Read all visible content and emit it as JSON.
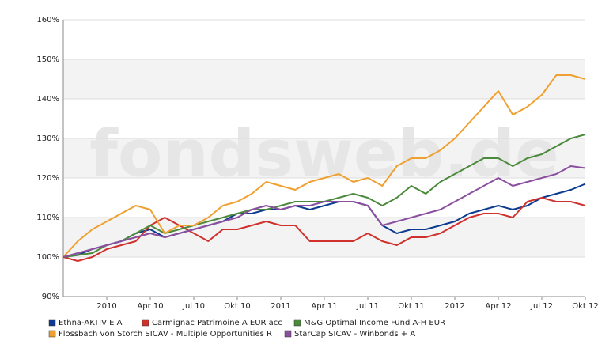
{
  "chart_data": {
    "type": "line",
    "watermark": "fondsweb.de",
    "x": [
      "2009-10",
      "2009-11",
      "2009-12",
      "2010-01",
      "2010-02",
      "2010-03",
      "2010-04",
      "2010-05",
      "2010-06",
      "2010-07",
      "2010-08",
      "2010-09",
      "2010-10",
      "2010-11",
      "2010-12",
      "2011-01",
      "2011-02",
      "2011-03",
      "2011-04",
      "2011-05",
      "2011-06",
      "2011-07",
      "2011-08",
      "2011-09",
      "2011-10",
      "2011-11",
      "2011-12",
      "2012-01",
      "2012-02",
      "2012-03",
      "2012-04",
      "2012-05",
      "2012-06",
      "2012-07",
      "2012-08",
      "2012-09",
      "2012-10"
    ],
    "xlim": [
      "2009-10",
      "2012-10"
    ],
    "xticks": [
      {
        "value": "2010-01",
        "label": "2010"
      },
      {
        "value": "2010-04",
        "label": "Apr 10"
      },
      {
        "value": "2010-07",
        "label": "Jul 10"
      },
      {
        "value": "2010-10",
        "label": "Okt 10"
      },
      {
        "value": "2011-01",
        "label": "2011"
      },
      {
        "value": "2011-04",
        "label": "Apr 11"
      },
      {
        "value": "2011-07",
        "label": "Jul 11"
      },
      {
        "value": "2011-10",
        "label": "Okt 11"
      },
      {
        "value": "2012-01",
        "label": "2012"
      },
      {
        "value": "2012-04",
        "label": "Apr 12"
      },
      {
        "value": "2012-07",
        "label": "Jul 12"
      },
      {
        "value": "2012-10",
        "label": "Okt 12"
      }
    ],
    "ylim": [
      90,
      160
    ],
    "yticks": [
      {
        "value": 90,
        "label": "90%"
      },
      {
        "value": 100,
        "label": "100%"
      },
      {
        "value": 110,
        "label": "110%"
      },
      {
        "value": 120,
        "label": "120%"
      },
      {
        "value": 130,
        "label": "130%"
      },
      {
        "value": 140,
        "label": "140%"
      },
      {
        "value": 150,
        "label": "150%"
      },
      {
        "value": 160,
        "label": "160%"
      }
    ],
    "grid": true,
    "series": [
      {
        "name": "Ethna-AKTIV E A",
        "color": "#0b3a8f",
        "values": [
          100,
          100.5,
          102,
          103,
          104,
          106,
          107,
          105,
          106,
          107,
          108,
          109,
          111,
          111,
          112,
          112,
          113,
          112,
          113,
          114,
          114,
          113,
          108,
          106,
          107,
          107,
          108,
          109,
          111,
          112,
          113,
          112,
          113,
          115,
          116,
          117,
          118.5
        ]
      },
      {
        "name": "Carmignac Patrimoine A EUR acc",
        "color": "#d0312d",
        "values": [
          100,
          99,
          100,
          102,
          103,
          104,
          108,
          110,
          108,
          106,
          104,
          107,
          107,
          108,
          109,
          108,
          108,
          104,
          104,
          104,
          104,
          106,
          104,
          103,
          105,
          105,
          106,
          108,
          110,
          111,
          111,
          110,
          114,
          115,
          114,
          114,
          113
        ]
      },
      {
        "name": "M&G Optimal Income Fund A-H EUR",
        "color": "#4a8a3a",
        "values": [
          100,
          100.5,
          101,
          103,
          104,
          106,
          108,
          106,
          107,
          108,
          109,
          110,
          111,
          112,
          112,
          113,
          114,
          114,
          114,
          115,
          116,
          115,
          113,
          115,
          118,
          116,
          119,
          121,
          123,
          125,
          125,
          123,
          125,
          126,
          128,
          130,
          131
        ]
      },
      {
        "name": "Flossbach von Storch SICAV - Multiple Opportunities R",
        "color": "#f0a030",
        "values": [
          100,
          104,
          107,
          109,
          111,
          113,
          112,
          106,
          108,
          108,
          110,
          113,
          114,
          116,
          119,
          118,
          117,
          119,
          120,
          121,
          119,
          120,
          118,
          123,
          125,
          125,
          127,
          130,
          134,
          138,
          142,
          136,
          138,
          141,
          146,
          146,
          145
        ]
      },
      {
        "name": "StarCap SICAV - Winbonds + A",
        "color": "#8b4fa0",
        "values": [
          100,
          101,
          102,
          103,
          104,
          105,
          106,
          105,
          106,
          107,
          108,
          109,
          110,
          112,
          113,
          112,
          113,
          113,
          114,
          114,
          114,
          113,
          108,
          109,
          110,
          111,
          112,
          114,
          116,
          118,
          120,
          118,
          119,
          120,
          121,
          123,
          122.5
        ]
      }
    ]
  }
}
